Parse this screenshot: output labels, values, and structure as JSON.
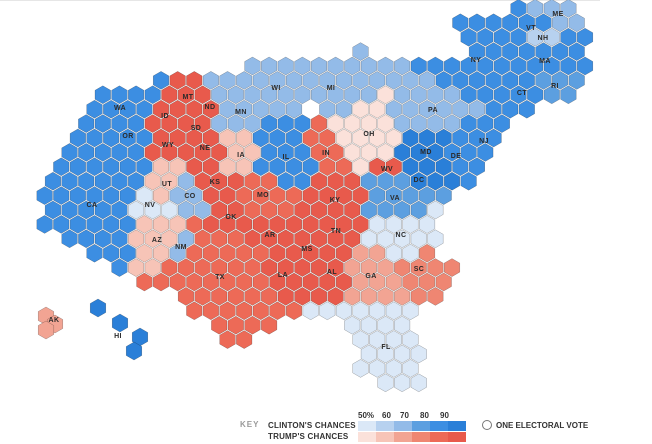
{
  "colors": {
    "clinton": [
      "#dbe8f7",
      "#b7d1ef",
      "#93bbe8",
      "#5c9fe0",
      "#3c8ee2",
      "#2a7fd8"
    ],
    "trump": [
      "#fbe1da",
      "#f7c4b7",
      "#f2a493",
      "#ef8672",
      "#ed6a57",
      "#e85a4c"
    ],
    "stroke": "#3a3a3a"
  },
  "map": {
    "states": [
      {
        "abbr": "WA",
        "lean": "clinton",
        "level": 4
      },
      {
        "abbr": "OR",
        "lean": "clinton",
        "level": 4
      },
      {
        "abbr": "CA",
        "lean": "clinton",
        "level": 4
      },
      {
        "abbr": "NV",
        "lean": "clinton",
        "level": 0
      },
      {
        "abbr": "ID",
        "lean": "trump",
        "level": 5
      },
      {
        "abbr": "MT",
        "lean": "trump",
        "level": 5
      },
      {
        "abbr": "WY",
        "lean": "trump",
        "level": 5
      },
      {
        "abbr": "UT",
        "lean": "trump",
        "level": 1
      },
      {
        "abbr": "AZ",
        "lean": "trump",
        "level": 1
      },
      {
        "abbr": "CO",
        "lean": "clinton",
        "level": 2
      },
      {
        "abbr": "NM",
        "lean": "clinton",
        "level": 2
      },
      {
        "abbr": "ND",
        "lean": "trump",
        "level": 5
      },
      {
        "abbr": "SD",
        "lean": "trump",
        "level": 5
      },
      {
        "abbr": "NE",
        "lean": "trump",
        "level": 5
      },
      {
        "abbr": "KS",
        "lean": "trump",
        "level": 5
      },
      {
        "abbr": "OK",
        "lean": "trump",
        "level": 5
      },
      {
        "abbr": "TX",
        "lean": "trump",
        "level": 4
      },
      {
        "abbr": "MN",
        "lean": "clinton",
        "level": 2
      },
      {
        "abbr": "IA",
        "lean": "trump",
        "level": 1
      },
      {
        "abbr": "MO",
        "lean": "trump",
        "level": 4
      },
      {
        "abbr": "AR",
        "lean": "trump",
        "level": 5
      },
      {
        "abbr": "LA",
        "lean": "trump",
        "level": 5
      },
      {
        "abbr": "WI",
        "lean": "clinton",
        "level": 2
      },
      {
        "abbr": "IL",
        "lean": "clinton",
        "level": 4
      },
      {
        "abbr": "MI",
        "lean": "clinton",
        "level": 2
      },
      {
        "abbr": "IN",
        "lean": "trump",
        "level": 4
      },
      {
        "abbr": "OH",
        "lean": "trump",
        "level": 0
      },
      {
        "abbr": "KY",
        "lean": "trump",
        "level": 5
      },
      {
        "abbr": "TN",
        "lean": "trump",
        "level": 5
      },
      {
        "abbr": "MS",
        "lean": "trump",
        "level": 5
      },
      {
        "abbr": "AL",
        "lean": "trump",
        "level": 5
      },
      {
        "abbr": "GA",
        "lean": "trump",
        "level": 2
      },
      {
        "abbr": "SC",
        "lean": "trump",
        "level": 3
      },
      {
        "abbr": "NC",
        "lean": "clinton",
        "level": 0
      },
      {
        "abbr": "VA",
        "lean": "clinton",
        "level": 3
      },
      {
        "abbr": "WV",
        "lean": "trump",
        "level": 5
      },
      {
        "abbr": "PA",
        "lean": "clinton",
        "level": 2
      },
      {
        "abbr": "NY",
        "lean": "clinton",
        "level": 4
      },
      {
        "abbr": "MD",
        "lean": "clinton",
        "level": 5
      },
      {
        "abbr": "DE",
        "lean": "clinton",
        "level": 4
      },
      {
        "abbr": "DC",
        "lean": "clinton",
        "level": 5
      },
      {
        "abbr": "NJ",
        "lean": "clinton",
        "level": 4
      },
      {
        "abbr": "CT",
        "lean": "clinton",
        "level": 4
      },
      {
        "abbr": "RI",
        "lean": "clinton",
        "level": 3
      },
      {
        "abbr": "MA",
        "lean": "clinton",
        "level": 4
      },
      {
        "abbr": "VT",
        "lean": "clinton",
        "level": 4
      },
      {
        "abbr": "NH",
        "lean": "clinton",
        "level": 1
      },
      {
        "abbr": "ME",
        "lean": "clinton",
        "level": 2
      },
      {
        "abbr": "FL",
        "lean": "clinton",
        "level": 0
      },
      {
        "abbr": "AK",
        "lean": "trump",
        "level": 2
      },
      {
        "abbr": "HI",
        "lean": "clinton",
        "level": 5
      }
    ]
  },
  "key": {
    "title": "KEY",
    "clinton_label": "CLINTON'S CHANCES",
    "trump_label": "TRUMP'S CHANCES",
    "ticks": [
      "50%",
      "60",
      "70",
      "80",
      "90"
    ],
    "electoral_vote_label": "ONE ELECTORAL VOTE"
  }
}
